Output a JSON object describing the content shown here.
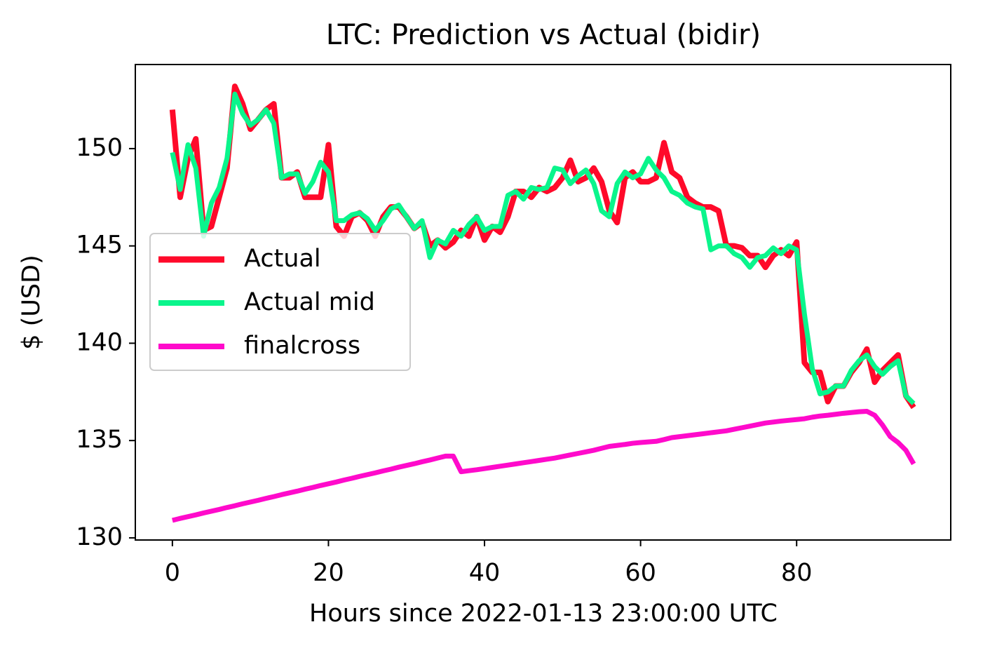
{
  "chart_data": {
    "type": "line",
    "title": "LTC: Prediction vs Actual (bidir)",
    "xlabel": "Hours since 2022-01-13 23:00:00 UTC",
    "ylabel": "$ (USD)",
    "x": [
      0,
      1,
      2,
      3,
      4,
      5,
      6,
      7,
      8,
      9,
      10,
      11,
      12,
      13,
      14,
      15,
      16,
      17,
      18,
      19,
      20,
      21,
      22,
      23,
      24,
      25,
      26,
      27,
      28,
      29,
      30,
      31,
      32,
      33,
      34,
      35,
      36,
      37,
      38,
      39,
      40,
      41,
      42,
      43,
      44,
      45,
      46,
      47,
      48,
      49,
      50,
      51,
      52,
      53,
      54,
      55,
      56,
      57,
      58,
      59,
      60,
      61,
      62,
      63,
      64,
      65,
      66,
      67,
      68,
      69,
      70,
      71,
      72,
      73,
      74,
      75,
      76,
      77,
      78,
      79,
      80,
      81,
      82,
      83,
      84,
      85,
      86,
      87,
      88,
      89,
      90,
      91,
      92,
      93,
      94,
      95
    ],
    "series": [
      {
        "name": "Actual",
        "color": "#ff0a2a",
        "width": 8,
        "values": [
          152.0,
          147.5,
          149.5,
          150.5,
          145.8,
          146.0,
          147.5,
          149.0,
          153.2,
          152.3,
          151.0,
          151.5,
          152.0,
          152.3,
          148.5,
          148.5,
          148.8,
          147.5,
          147.5,
          147.5,
          150.2,
          146.0,
          145.5,
          146.5,
          146.7,
          146.3,
          145.5,
          146.5,
          147.0,
          147.0,
          146.5,
          145.9,
          146.2,
          145.0,
          145.3,
          144.9,
          145.2,
          145.8,
          145.5,
          146.5,
          145.3,
          146.0,
          145.7,
          146.5,
          147.8,
          147.8,
          147.5,
          148.0,
          147.8,
          148.0,
          148.5,
          149.4,
          148.3,
          148.5,
          149.0,
          148.3,
          146.8,
          146.2,
          148.5,
          148.8,
          148.3,
          148.3,
          148.5,
          150.3,
          148.8,
          148.5,
          147.5,
          147.2,
          147.0,
          147.0,
          146.8,
          145.0,
          145.0,
          144.9,
          144.5,
          144.5,
          143.9,
          144.5,
          144.8,
          144.5,
          145.2,
          139.0,
          138.5,
          138.5,
          137.0,
          137.8,
          137.8,
          138.5,
          139.0,
          139.7,
          138.0,
          138.6,
          139.0,
          139.4,
          137.3,
          136.7
        ]
      },
      {
        "name": "Actual mid",
        "color": "#0af58c",
        "width": 7,
        "values": [
          149.8,
          147.9,
          150.2,
          149.0,
          145.5,
          147.2,
          148.0,
          149.5,
          152.8,
          151.8,
          151.2,
          151.5,
          152.0,
          151.3,
          148.5,
          148.7,
          148.7,
          147.7,
          148.3,
          149.3,
          148.8,
          146.3,
          146.3,
          146.6,
          146.7,
          146.4,
          145.8,
          146.3,
          146.9,
          147.1,
          146.5,
          145.9,
          146.3,
          144.4,
          145.3,
          145.1,
          145.8,
          145.5,
          146.1,
          146.5,
          145.8,
          146.0,
          146.0,
          147.6,
          147.8,
          147.4,
          148.0,
          147.9,
          148.0,
          149.0,
          148.9,
          148.2,
          148.6,
          148.9,
          148.2,
          146.8,
          146.5,
          148.2,
          148.8,
          148.5,
          148.7,
          149.5,
          148.9,
          148.5,
          147.8,
          147.6,
          147.2,
          147.0,
          146.9,
          144.8,
          145.0,
          145.0,
          144.6,
          144.4,
          143.9,
          144.4,
          144.5,
          144.9,
          144.6,
          145.0,
          144.8,
          141.5,
          138.7,
          137.4,
          137.5,
          137.8,
          137.8,
          138.6,
          139.1,
          139.4,
          138.8,
          138.4,
          138.8,
          139.1,
          137.3,
          136.9
        ]
      },
      {
        "name": "finalcross",
        "color": "#ff0acb",
        "width": 7,
        "values": [
          130.9,
          131.0,
          131.09,
          131.18,
          131.28,
          131.37,
          131.46,
          131.56,
          131.65,
          131.75,
          131.84,
          131.93,
          132.03,
          132.12,
          132.22,
          132.31,
          132.4,
          132.5,
          132.59,
          132.69,
          132.78,
          132.87,
          132.97,
          133.06,
          133.16,
          133.25,
          133.34,
          133.44,
          133.53,
          133.63,
          133.72,
          133.81,
          133.91,
          134.0,
          134.1,
          134.2,
          134.2,
          133.4,
          133.45,
          133.5,
          133.56,
          133.62,
          133.68,
          133.74,
          133.8,
          133.86,
          133.92,
          133.98,
          134.04,
          134.1,
          134.18,
          134.26,
          134.34,
          134.42,
          134.5,
          134.6,
          134.7,
          134.75,
          134.8,
          134.86,
          134.9,
          134.93,
          134.96,
          135.05,
          135.15,
          135.2,
          135.25,
          135.3,
          135.35,
          135.4,
          135.45,
          135.5,
          135.58,
          135.66,
          135.74,
          135.82,
          135.9,
          135.95,
          136.0,
          136.04,
          136.08,
          136.12,
          136.2,
          136.26,
          136.3,
          136.35,
          136.4,
          136.44,
          136.48,
          136.5,
          136.3,
          135.8,
          135.2,
          134.9,
          134.5,
          133.8
        ]
      }
    ],
    "xlim": [
      -4.75,
      99.75
    ],
    "xticks": [
      0,
      20,
      40,
      60,
      80
    ],
    "ylim": [
      129.89,
      154.32
    ],
    "yticks": [
      130,
      135,
      140,
      145,
      150
    ],
    "legend": "center left",
    "grid": false
  }
}
